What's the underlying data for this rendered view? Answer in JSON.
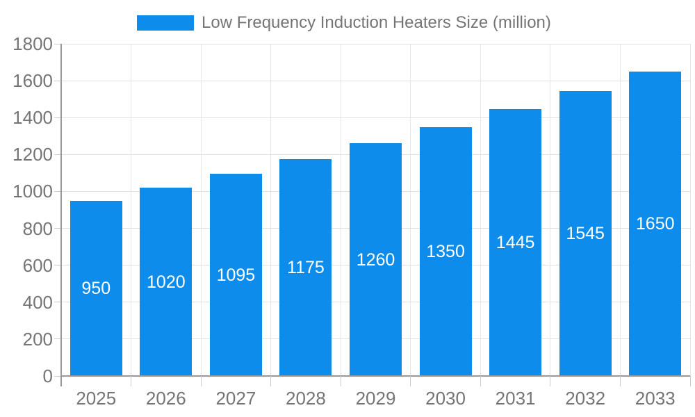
{
  "legend": {
    "label": "Low Frequency Induction Heaters Size (million)"
  },
  "chart_data": {
    "type": "bar",
    "title": "Low Frequency Induction Heaters Size (million)",
    "categories": [
      "2025",
      "2026",
      "2027",
      "2028",
      "2029",
      "2030",
      "2031",
      "2032",
      "2033"
    ],
    "values": [
      950,
      1020,
      1095,
      1175,
      1260,
      1350,
      1445,
      1545,
      1650
    ],
    "series_name": "Low Frequency Induction Heaters Size (million)",
    "xlabel": "",
    "ylabel": "",
    "ylim": [
      0,
      1800
    ],
    "ytick_step": 200,
    "grid": true,
    "legend_position": "top",
    "bar_labels_visible": true,
    "colors": {
      "bar": "#0d8ceb",
      "bar_label": "#ffffff",
      "axis_text": "#757575",
      "grid_horizontal": "#e0e0e0",
      "grid_vertical": "#e6e6e6",
      "axis_line": "#999999",
      "tick": "#cccccc",
      "background": "#ffffff"
    }
  }
}
